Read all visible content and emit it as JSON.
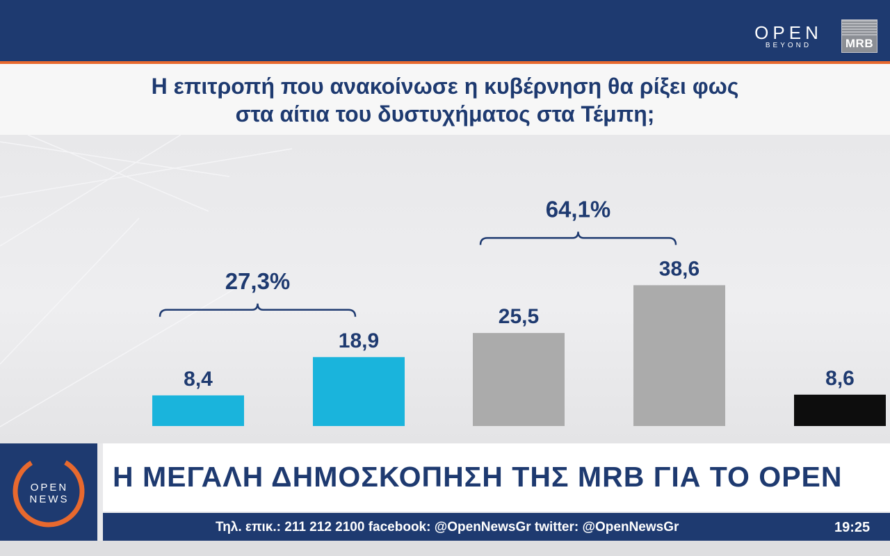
{
  "brand": {
    "channel_logo": "OPEN",
    "channel_tagline": "BEYOND",
    "pollster_logo": "MRB",
    "news_logo_line1": "OPEN",
    "news_logo_line2": "NEWS"
  },
  "question": {
    "line1": "Η επιτροπή που ανακοίνωσε η κυβέρνηση θα ρίξει φως",
    "line2": "στα αίτια του δυστυχήματος στα Τέμπη;"
  },
  "chart_data": {
    "type": "bar",
    "values": [
      8.4,
      18.9,
      25.5,
      38.6,
      8.6
    ],
    "value_labels": [
      "8,4",
      "18,9",
      "25,5",
      "38,6",
      "8,6"
    ],
    "bar_colors": [
      "#1ab4dc",
      "#1ab4dc",
      "#ababab",
      "#ababab",
      "#0d0d0d"
    ],
    "groups": [
      {
        "label": "27,3%",
        "bars": [
          0,
          1
        ]
      },
      {
        "label": "64,1%",
        "bars": [
          2,
          3
        ]
      }
    ],
    "ylim": [
      0,
      40
    ]
  },
  "headline": "Η ΜΕΓΑΛΗ ΔΗΜΟΣΚΟΠΗΣΗ ΤΗΣ MRB ΓΙΑ ΤΟ OPEN",
  "ticker": {
    "info": "Τηλ. επικ.: 211 212 2100 facebook: @OpenNewsGr twitter: @OpenNewsGr",
    "time": "19:25"
  },
  "colors": {
    "navy": "#1e3a70",
    "accent_orange": "#e8692e",
    "cyan": "#1ab4dc",
    "grey": "#ababab",
    "black": "#0d0d0d"
  }
}
